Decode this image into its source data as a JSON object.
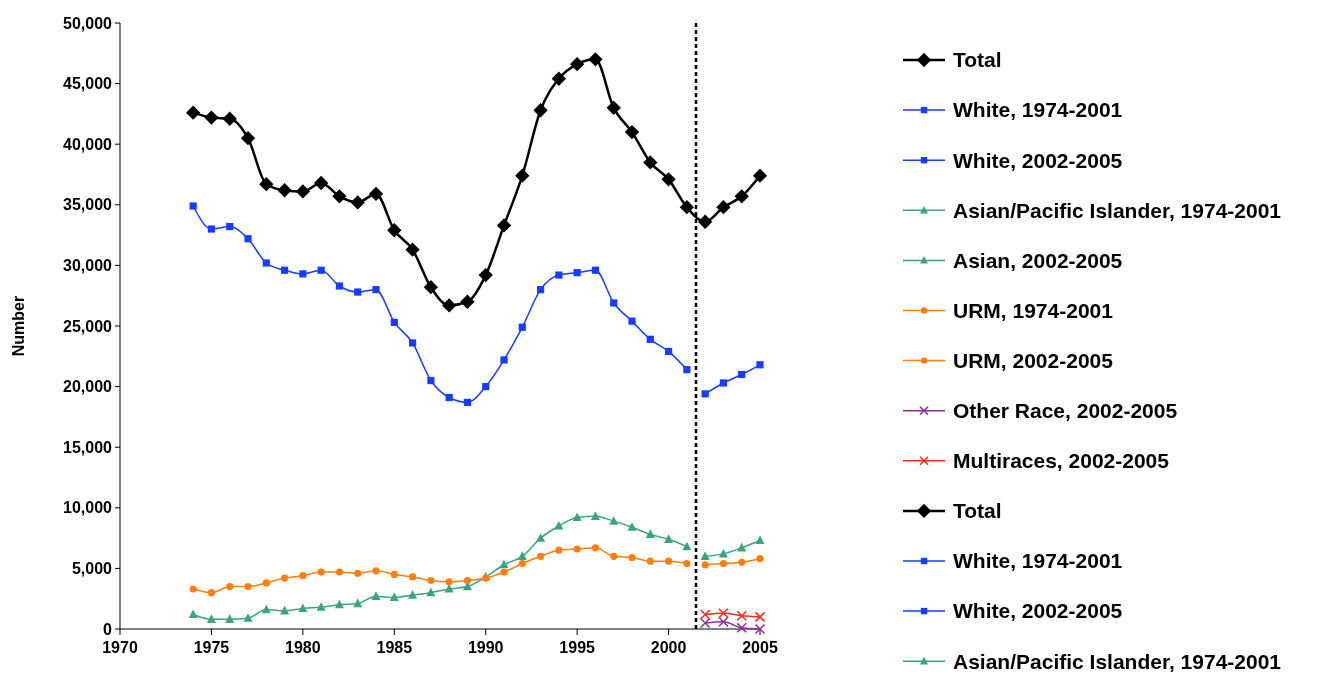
{
  "chart_data": {
    "type": "line",
    "ylabel": "Number",
    "xlim": [
      1970,
      2005
    ],
    "xticks": [
      1970,
      1975,
      1980,
      1985,
      1990,
      1995,
      2000,
      2005
    ],
    "ylim": [
      0,
      50000
    ],
    "yticks": [
      {
        "value": 0,
        "label": "0"
      },
      {
        "value": 5000,
        "label": "5,000"
      },
      {
        "value": 10000,
        "label": "10,000"
      },
      {
        "value": 15000,
        "label": "15,000"
      },
      {
        "value": 20000,
        "label": "20,000"
      },
      {
        "value": 25000,
        "label": "25,000"
      },
      {
        "value": 30000,
        "label": "30,000"
      },
      {
        "value": 35000,
        "label": "35,000"
      },
      {
        "value": 40000,
        "label": "40,000"
      },
      {
        "value": 45000,
        "label": "45,000"
      },
      {
        "value": 50000,
        "label": "50,000"
      }
    ],
    "grid": false,
    "legend": "right",
    "line_style": "solid",
    "ref_lines": [
      {
        "axis": "x",
        "value": 2001.5,
        "color": "#000000",
        "line_style": "dashed"
      }
    ],
    "series": [
      {
        "name": "Total",
        "color": "#000000",
        "marker": "diamond",
        "x": [
          1974,
          1975,
          1976,
          1977,
          1978,
          1979,
          1980,
          1981,
          1982,
          1983,
          1984,
          1985,
          1986,
          1987,
          1988,
          1989,
          1990,
          1991,
          1992,
          1993,
          1994,
          1995,
          1996,
          1997,
          1998,
          1999,
          2000,
          2001,
          2002,
          2003,
          2004,
          2005
        ],
        "values": [
          42600,
          42200,
          42100,
          40500,
          36700,
          36200,
          36100,
          36800,
          35700,
          35200,
          35900,
          32900,
          31300,
          28200,
          26700,
          27000,
          29200,
          33300,
          37400,
          42800,
          45400,
          46600,
          47000,
          43000,
          41000,
          38500,
          37100,
          34800,
          33600,
          34800,
          35700,
          37400
        ]
      },
      {
        "name": "White, 1974-2001",
        "color": "#1a3cff",
        "marker": "square",
        "x": [
          1974,
          1975,
          1976,
          1977,
          1978,
          1979,
          1980,
          1981,
          1982,
          1983,
          1984,
          1985,
          1986,
          1987,
          1988,
          1989,
          1990,
          1991,
          1992,
          1993,
          1994,
          1995,
          1996,
          1997,
          1998,
          1999,
          2000,
          2001
        ],
        "values": [
          34900,
          33000,
          33200,
          32200,
          30200,
          29600,
          29300,
          29600,
          28300,
          27800,
          28000,
          25300,
          23600,
          20500,
          19100,
          18700,
          20000,
          22200,
          24900,
          28000,
          29200,
          29400,
          29600,
          26900,
          25400,
          23900,
          22900,
          21400
        ]
      },
      {
        "name": "White, 2002-2005",
        "color": "#1a3cff",
        "marker": "square",
        "x": [
          2002,
          2003,
          2004,
          2005
        ],
        "values": [
          19400,
          20300,
          21000,
          21800
        ]
      },
      {
        "name": "Asian/Pacific Islander, 1974-2001",
        "color": "#3aa57a",
        "marker": "triangle",
        "x": [
          1974,
          1975,
          1976,
          1977,
          1978,
          1979,
          1980,
          1981,
          1982,
          1983,
          1984,
          1985,
          1986,
          1987,
          1988,
          1989,
          1990,
          1991,
          1992,
          1993,
          1994,
          1995,
          1996,
          1997,
          1998,
          1999,
          2000,
          2001
        ],
        "values": [
          1200,
          800,
          800,
          900,
          1600,
          1500,
          1700,
          1800,
          2000,
          2100,
          2700,
          2600,
          2800,
          3000,
          3300,
          3500,
          4300,
          5300,
          6000,
          7500,
          8500,
          9200,
          9300,
          8900,
          8400,
          7800,
          7400,
          6800
        ]
      },
      {
        "name": "Asian, 2002-2005",
        "color": "#3aa57a",
        "marker": "triangle",
        "x": [
          2002,
          2003,
          2004,
          2005
        ],
        "values": [
          6000,
          6200,
          6700,
          7300
        ]
      },
      {
        "name": "URM, 1974-2001",
        "color": "#ff7f0e",
        "marker": "circle",
        "x": [
          1974,
          1975,
          1976,
          1977,
          1978,
          1979,
          1980,
          1981,
          1982,
          1983,
          1984,
          1985,
          1986,
          1987,
          1988,
          1989,
          1990,
          1991,
          1992,
          1993,
          1994,
          1995,
          1996,
          1997,
          1998,
          1999,
          2000,
          2001
        ],
        "values": [
          3300,
          3000,
          3500,
          3500,
          3800,
          4200,
          4400,
          4700,
          4700,
          4600,
          4800,
          4500,
          4300,
          4000,
          3900,
          4000,
          4200,
          4700,
          5400,
          6000,
          6500,
          6600,
          6700,
          6000,
          5900,
          5600,
          5600,
          5400
        ]
      },
      {
        "name": "URM, 2002-2005",
        "color": "#ff7f0e",
        "marker": "circle",
        "x": [
          2002,
          2003,
          2004,
          2005
        ],
        "values": [
          5300,
          5400,
          5500,
          5800
        ]
      },
      {
        "name": "Other Race, 2002-2005",
        "color": "#8b2d9c",
        "marker": "cross",
        "x": [
          2002,
          2003,
          2004,
          2005
        ],
        "values": [
          500,
          600,
          100,
          0
        ]
      },
      {
        "name": "Multiraces, 2002-2005",
        "color": "#ff2a1a",
        "marker": "cross",
        "x": [
          2002,
          2003,
          2004,
          2005
        ],
        "values": [
          1200,
          1300,
          1100,
          1000
        ]
      }
    ]
  }
}
